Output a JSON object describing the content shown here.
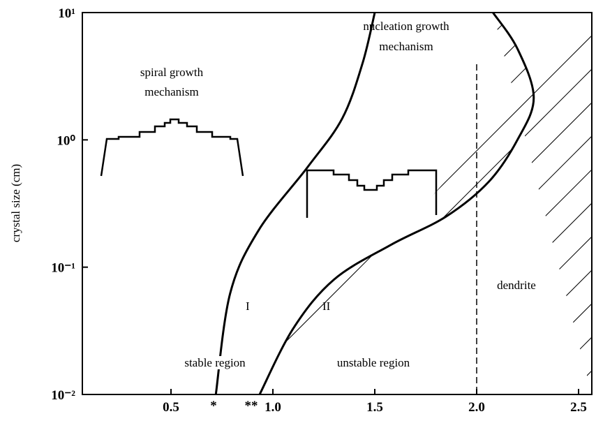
{
  "chart_data": {
    "type": "line",
    "y_label": "crystal size (cm)",
    "x": null,
    "series": [
      {
        "name": "I",
        "color": "#000000",
        "x": [
          0.72,
          0.79,
          0.93,
          1.17,
          1.34,
          1.44,
          1.5
        ],
        "values": [
          0.01,
          0.062,
          0.195,
          0.61,
          1.47,
          4.0,
          10
        ]
      },
      {
        "name": "II",
        "color": "#000000",
        "x": [
          0.935,
          1.1,
          1.3,
          1.58,
          1.85,
          2.06,
          2.2,
          2.28,
          2.2,
          2.08
        ],
        "values": [
          0.01,
          0.033,
          0.08,
          0.15,
          0.25,
          0.47,
          1.0,
          2.14,
          5.2,
          10
        ]
      }
    ],
    "annotations": [
      "spiral growth",
      "mechanism",
      "nucleation growth",
      "mechanism",
      "stable region",
      "unstable region",
      "dendrite",
      "*",
      "**"
    ],
    "xlim": [
      0.065,
      2.565
    ],
    "xticks": [
      0.5,
      {
        "value": 1.0,
        "label": "1.0"
      },
      1.5,
      {
        "value": 2.0,
        "label": "2.0"
      },
      2.5
    ],
    "ylim": [
      0.01,
      10
    ],
    "yticks": [
      {
        "value": 0.01,
        "label": "10⁻²"
      },
      {
        "value": 0.1,
        "label": "10⁻¹"
      },
      {
        "value": 1,
        "label": "10⁰"
      },
      {
        "value": 10,
        "label": "10¹"
      }
    ],
    "log_y": true,
    "dashed_x": 2.0
  }
}
